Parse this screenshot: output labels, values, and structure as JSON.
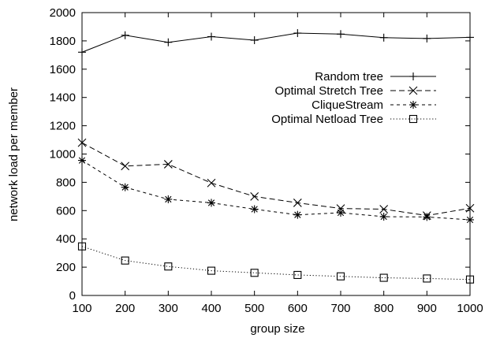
{
  "chart_data": {
    "type": "line",
    "title": "",
    "xlabel": "group size",
    "ylabel": "network load per member",
    "xlim": [
      100,
      1000
    ],
    "ylim": [
      0,
      2000
    ],
    "x_ticks": [
      "100",
      "200",
      "300",
      "400",
      "500",
      "600",
      "700",
      "800",
      "900",
      "1000"
    ],
    "y_ticks": [
      "0",
      "200",
      "400",
      "600",
      "800",
      "1000",
      "1200",
      "1400",
      "1600",
      "1800",
      "2000"
    ],
    "x": [
      100,
      200,
      300,
      400,
      500,
      600,
      700,
      800,
      900,
      1000
    ],
    "grid": false,
    "legend_position": "right",
    "series": [
      {
        "name": "Random tree",
        "marker": "plus",
        "dash": "solid",
        "values": [
          1720,
          1840,
          1790,
          1830,
          1805,
          1855,
          1848,
          1823,
          1817,
          1825
        ]
      },
      {
        "name": "Optimal Stretch Tree",
        "marker": "cross",
        "dash": "dashed",
        "values": [
          1080,
          915,
          928,
          795,
          700,
          655,
          615,
          610,
          565,
          617
        ]
      },
      {
        "name": "CliqueStream",
        "marker": "star",
        "dash": "short-dashed",
        "values": [
          955,
          765,
          680,
          655,
          610,
          570,
          585,
          557,
          555,
          535
        ]
      },
      {
        "name": "Optimal Netload Tree",
        "marker": "square",
        "dash": "dotted",
        "values": [
          347,
          247,
          205,
          175,
          160,
          145,
          135,
          125,
          120,
          113
        ]
      }
    ]
  }
}
